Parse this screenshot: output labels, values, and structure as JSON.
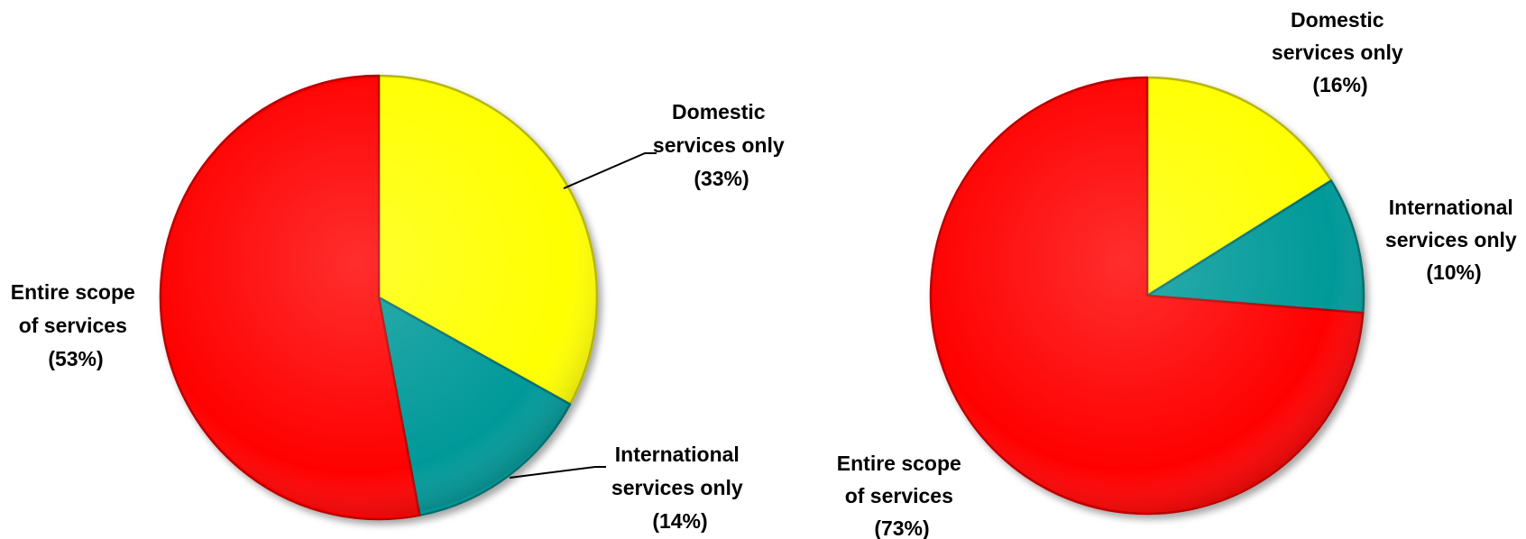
{
  "colors": {
    "domestic": "#ffff00",
    "international": "#009999",
    "entire": "#ff0000",
    "leader": "#000000"
  },
  "chart_data": [
    {
      "type": "pie",
      "title": "",
      "start": "12 o'clock, clockwise",
      "slices": [
        {
          "category": "domestic",
          "value": 33,
          "label_lines": [
            "Domestic",
            "services only",
            "(33%)"
          ]
        },
        {
          "category": "international",
          "value": 14,
          "label_lines": [
            "International",
            "services only",
            "(14%)"
          ]
        },
        {
          "category": "entire",
          "value": 53,
          "label_lines": [
            "Entire scope",
            "of services",
            "(53%)"
          ]
        }
      ]
    },
    {
      "type": "pie",
      "title": "",
      "start": "12 o'clock, clockwise",
      "slices": [
        {
          "category": "domestic",
          "value": 16,
          "label_lines": [
            "Domestic",
            "services only",
            "(16%)"
          ]
        },
        {
          "category": "international",
          "value": 10,
          "label_lines": [
            "International",
            "services only",
            "(10%)"
          ]
        },
        {
          "category": "entire",
          "value": 73,
          "label_lines": [
            "Entire scope",
            "of services",
            "(73%)"
          ]
        }
      ]
    }
  ]
}
